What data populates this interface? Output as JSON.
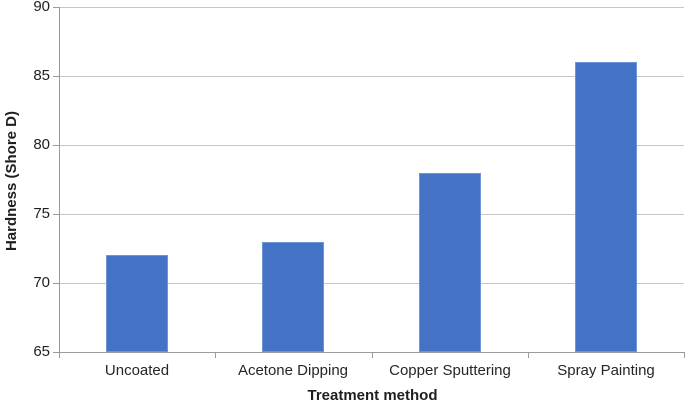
{
  "chart_data": {
    "type": "bar",
    "categories": [
      "Uncoated",
      "Acetone Dipping",
      "Copper Sputtering",
      "Spray Painting"
    ],
    "values": [
      72,
      73,
      78,
      86
    ],
    "title": "",
    "xlabel": "Treatment method",
    "ylabel": "Hardness (Shore D)",
    "ylim": [
      65,
      90
    ],
    "yticks": [
      65,
      70,
      75,
      80,
      85,
      90
    ],
    "grid": "horizontal",
    "legend_position": "none",
    "colors": {
      "bar_fill": "#4472C4",
      "bar_border": "#6C95D6",
      "gridline": "#C6C6C6",
      "axis_line": "#9B9B9B",
      "tick_label": "#1F1F1F",
      "axis_title": "#1F1F1F"
    }
  }
}
